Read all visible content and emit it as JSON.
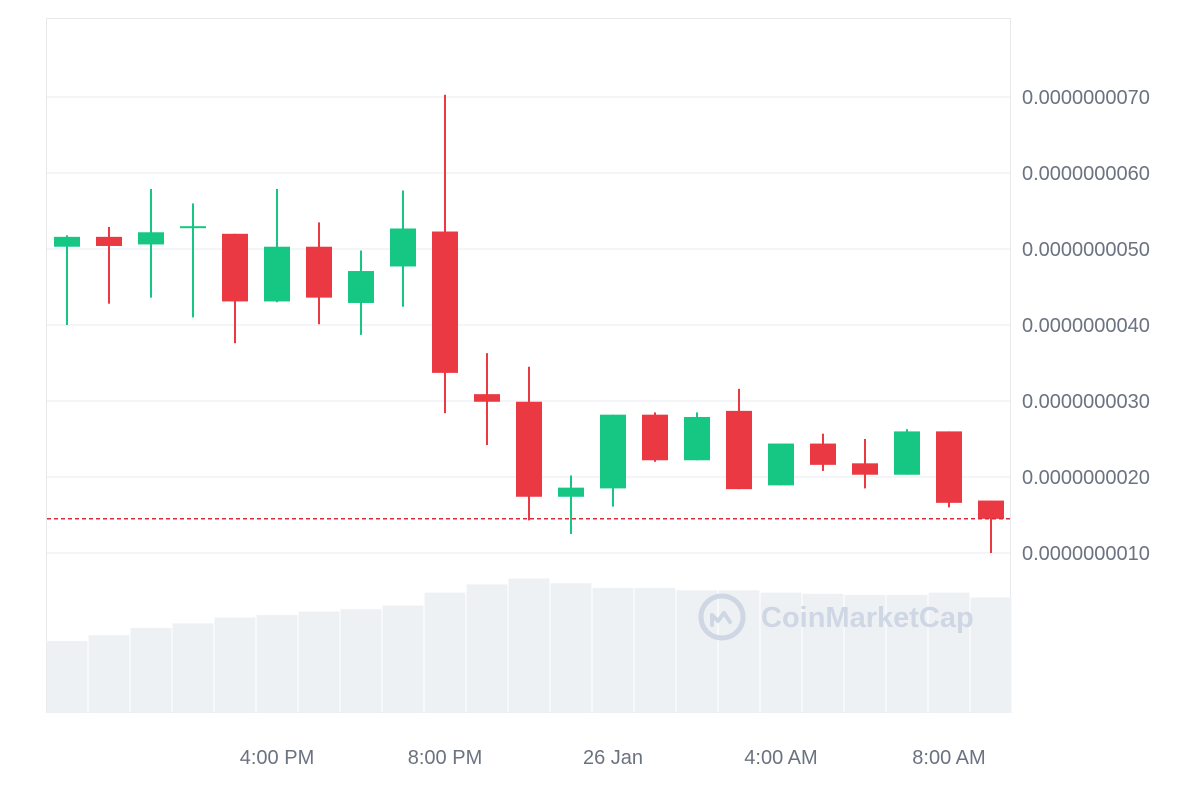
{
  "watermark": {
    "text": "CoinMarketCap",
    "icon": "coinmarketcap-logo-icon"
  },
  "colors": {
    "up": "#16c784",
    "down": "#ea3943",
    "price_line": "#d62c3a",
    "grid": "#eff2f5",
    "frame": "#e6e8ec",
    "volume": "#eef1f4",
    "axis_text": "#6b7280",
    "watermark": "#cfd6e4"
  },
  "chart_data": {
    "type": "candlestick",
    "price_unit": "USD",
    "y_axis": {
      "ticks": [
        1e-09,
        2e-09,
        3e-09,
        4e-09,
        5e-09,
        6e-09,
        7e-09
      ],
      "tick_labels": [
        "0.0000000010",
        "0.0000000020",
        "0.0000000030",
        "0.0000000040",
        "0.0000000050",
        "0.0000000060",
        "0.0000000070"
      ],
      "position": "right",
      "range": [
        1.5e-11,
        8e-09
      ]
    },
    "x_axis": {
      "tick_labels": [
        "4:00 PM",
        "8:00 PM",
        "26 Jan",
        "4:00 AM",
        "8:00 AM"
      ],
      "tick_candle_index": [
        5,
        9,
        13,
        17,
        21
      ]
    },
    "grid": true,
    "current_price_line": 1.45e-09,
    "candles": [
      {
        "open": 5.03e-09,
        "high": 5.18e-09,
        "low": 4e-09,
        "close": 5.16e-09
      },
      {
        "open": 5.16e-09,
        "high": 5.29e-09,
        "low": 4.28e-09,
        "close": 5.04e-09
      },
      {
        "open": 5.06e-09,
        "high": 5.79e-09,
        "low": 4.36e-09,
        "close": 5.22e-09
      },
      {
        "open": 5.3e-09,
        "high": 5.6e-09,
        "low": 4.1e-09,
        "close": 5.3e-09
      },
      {
        "open": 5.2e-09,
        "high": 5.2e-09,
        "low": 3.76e-09,
        "close": 4.31e-09
      },
      {
        "open": 4.31e-09,
        "high": 5.79e-09,
        "low": 4.3e-09,
        "close": 5.03e-09
      },
      {
        "open": 5.03e-09,
        "high": 5.35e-09,
        "low": 4.01e-09,
        "close": 4.36e-09
      },
      {
        "open": 4.29e-09,
        "high": 4.98e-09,
        "low": 3.87e-09,
        "close": 4.71e-09
      },
      {
        "open": 4.77e-09,
        "high": 5.77e-09,
        "low": 4.24e-09,
        "close": 5.27e-09
      },
      {
        "open": 5.23e-09,
        "high": 7.03e-09,
        "low": 2.84e-09,
        "close": 3.37e-09
      },
      {
        "open": 3.09e-09,
        "high": 3.63e-09,
        "low": 2.42e-09,
        "close": 2.99e-09
      },
      {
        "open": 2.99e-09,
        "high": 3.45e-09,
        "low": 1.43e-09,
        "close": 1.74e-09
      },
      {
        "open": 1.74e-09,
        "high": 2.02e-09,
        "low": 1.25e-09,
        "close": 1.86e-09
      },
      {
        "open": 1.85e-09,
        "high": 2.82e-09,
        "low": 1.61e-09,
        "close": 2.82e-09
      },
      {
        "open": 2.82e-09,
        "high": 2.85e-09,
        "low": 2.2e-09,
        "close": 2.22e-09
      },
      {
        "open": 2.22e-09,
        "high": 2.85e-09,
        "low": 2.22e-09,
        "close": 2.79e-09
      },
      {
        "open": 2.87e-09,
        "high": 3.16e-09,
        "low": 1.84e-09,
        "close": 1.84e-09
      },
      {
        "open": 1.89e-09,
        "high": 2.44e-09,
        "low": 1.89e-09,
        "close": 2.44e-09
      },
      {
        "open": 2.44e-09,
        "high": 2.57e-09,
        "low": 2.08e-09,
        "close": 2.16e-09
      },
      {
        "open": 2.18e-09,
        "high": 2.5e-09,
        "low": 1.85e-09,
        "close": 2.03e-09
      },
      {
        "open": 2.03e-09,
        "high": 2.63e-09,
        "low": 2.03e-09,
        "close": 2.6e-09
      },
      {
        "open": 2.6e-09,
        "high": 2.6e-09,
        "low": 1.6e-09,
        "close": 1.66e-09
      },
      {
        "open": 1.69e-09,
        "high": 1.69e-09,
        "low": 1e-09,
        "close": 1.45e-09
      }
    ],
    "volume_relative": [
      0.61,
      0.66,
      0.72,
      0.76,
      0.81,
      0.83,
      0.86,
      0.88,
      0.91,
      1.02,
      1.09,
      1.14,
      1.1,
      1.06,
      1.06,
      1.04,
      1.04,
      1.02,
      1.01,
      1.0,
      1.0,
      1.02,
      0.98
    ]
  }
}
